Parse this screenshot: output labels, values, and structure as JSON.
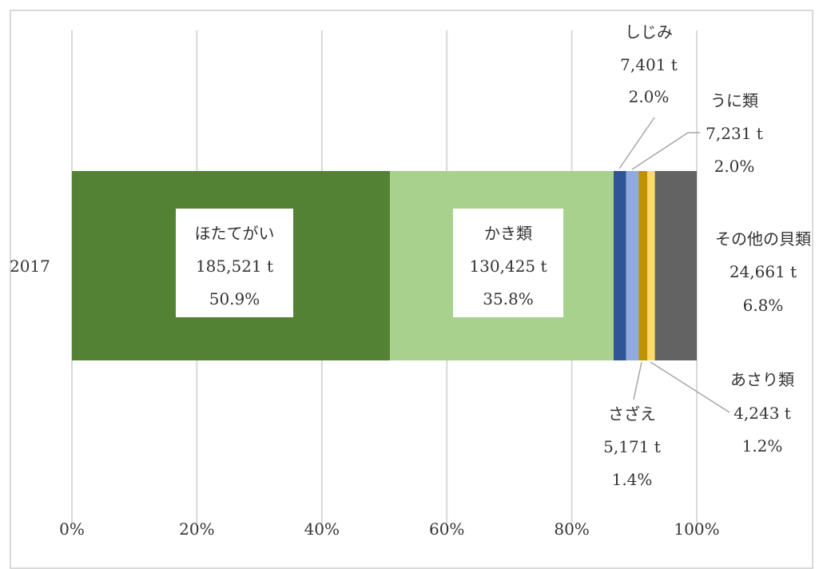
{
  "chart_data": {
    "type": "bar",
    "orientation": "horizontal",
    "stacked": "percent",
    "categories": [
      "2017"
    ],
    "xlim": [
      0,
      100
    ],
    "x_ticks": [
      "0%",
      "20%",
      "40%",
      "60%",
      "80%",
      "100%"
    ],
    "grid": "vertical",
    "legend": "none",
    "series": [
      {
        "name": "ほたてがい",
        "value_label": "185,521 t",
        "pct_label": "50.9%",
        "value": 185521,
        "pct": 50.9,
        "color": "#548235",
        "label_style": "inside-box"
      },
      {
        "name": "かき類",
        "value_label": "130,425 t",
        "pct_label": "35.8%",
        "value": 130425,
        "pct": 35.8,
        "color": "#a9d18e",
        "label_style": "inside-box"
      },
      {
        "name": "しじみ",
        "value_label": "7,401 t",
        "pct_label": "2.0%",
        "value": 7401,
        "pct": 2.0,
        "color": "#2f5597",
        "label_style": "callout"
      },
      {
        "name": "うに類",
        "value_label": "7,231 t",
        "pct_label": "2.0%",
        "value": 7231,
        "pct": 2.0,
        "color": "#8faadc",
        "label_style": "callout"
      },
      {
        "name": "さざえ",
        "value_label": "5,171 t",
        "pct_label": "1.4%",
        "value": 5171,
        "pct": 1.4,
        "color": "#bf9000",
        "label_style": "callout"
      },
      {
        "name": "あさり類",
        "value_label": "4,243 t",
        "pct_label": "1.2%",
        "value": 4243,
        "pct": 1.2,
        "color": "#ffd966",
        "label_style": "callout"
      },
      {
        "name": "その他の貝類",
        "value_label": "24,661 t",
        "pct_label": "6.8%",
        "value": 24661,
        "pct": 6.8,
        "color": "#636363",
        "label_style": "outside-right"
      }
    ]
  }
}
